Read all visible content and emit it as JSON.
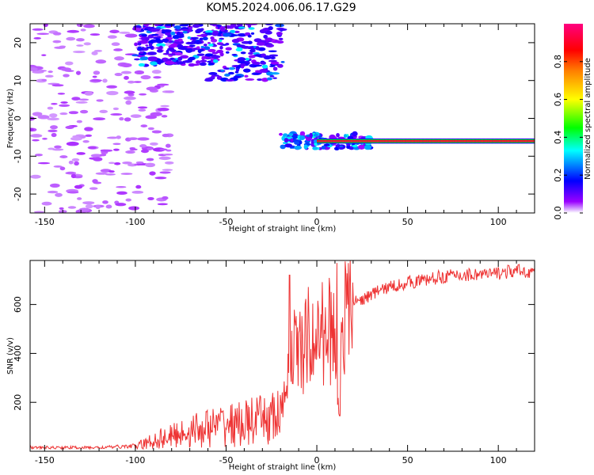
{
  "figure_title": "KOM5.2024.006.06.17.G29",
  "chart_data": [
    {
      "type": "heatmap",
      "title": "KOM5.2024.006.06.17.G29",
      "xlabel": "Height of straight line (km)",
      "ylabel": "Frequency (Hz)",
      "xlim": [
        -158,
        120
      ],
      "ylim": [
        -25,
        25
      ],
      "xticks": [
        -150,
        -100,
        -50,
        0,
        50,
        100
      ],
      "yticks": [
        20,
        10,
        0,
        -10,
        -20
      ],
      "colorbar": {
        "label": "Normalized spectral amplitude",
        "range": [
          0,
          1
        ],
        "ticks": [
          "0.0",
          "0.2",
          "0.4",
          "0.6",
          "0.8"
        ],
        "colormap": "gist_rainbow (violet-blue-cyan-green-yellow-orange-red-magenta)"
      },
      "features": [
        {
          "name": "main trace",
          "x_range": [
            -20,
            120
          ],
          "frequency_hz": -6,
          "amplitude": 1.0
        },
        {
          "name": "noise cluster",
          "x_range": [
            -100,
            -20
          ],
          "frequency_range_hz": [
            10,
            25
          ],
          "amplitude": 0.3
        },
        {
          "name": "scattered noise",
          "x_range": [
            -158,
            -100
          ],
          "frequency_range_hz": [
            -25,
            25
          ],
          "amplitude": 0.1
        }
      ]
    },
    {
      "type": "line",
      "xlabel": "Height of straight line (km)",
      "ylabel": "SNR (v/v)",
      "xlim": [
        -158,
        120
      ],
      "ylim": [
        0,
        780
      ],
      "xticks": [
        -150,
        -100,
        -50,
        0,
        50,
        100
      ],
      "yticks": [
        200,
        400,
        600
      ],
      "color": "#ee3333",
      "series": [
        {
          "x": [
            -158,
            -140,
            -120,
            -110,
            -100,
            -95,
            -90,
            -85,
            -80,
            -75,
            -70,
            -65,
            -60,
            -55,
            -50,
            -45,
            -40,
            -35,
            -30,
            -25,
            -20,
            -18,
            -16,
            -14,
            -12,
            -10,
            -8,
            -6,
            -4,
            -2,
            0,
            2,
            4,
            6,
            8,
            10,
            11,
            12,
            13,
            14,
            16,
            18,
            20,
            25,
            30,
            35,
            40,
            50,
            60,
            70,
            80,
            90,
            95,
            100,
            110,
            120
          ],
          "y": [
            15,
            15,
            15,
            18,
            22,
            28,
            45,
            55,
            60,
            75,
            80,
            90,
            95,
            100,
            115,
            105,
            115,
            120,
            125,
            135,
            145,
            200,
            320,
            360,
            420,
            450,
            380,
            440,
            490,
            420,
            450,
            520,
            450,
            540,
            470,
            490,
            330,
            160,
            420,
            520,
            560,
            600,
            610,
            620,
            640,
            660,
            670,
            690,
            700,
            715,
            720,
            725,
            720,
            730,
            735,
            735
          ]
        }
      ],
      "annotations": [
        {
          "type": "spike",
          "x": -15,
          "y": 720
        },
        {
          "type": "spike",
          "x": 11,
          "y": 770
        },
        {
          "type": "dip",
          "x": 12,
          "y": 145
        }
      ]
    }
  ]
}
